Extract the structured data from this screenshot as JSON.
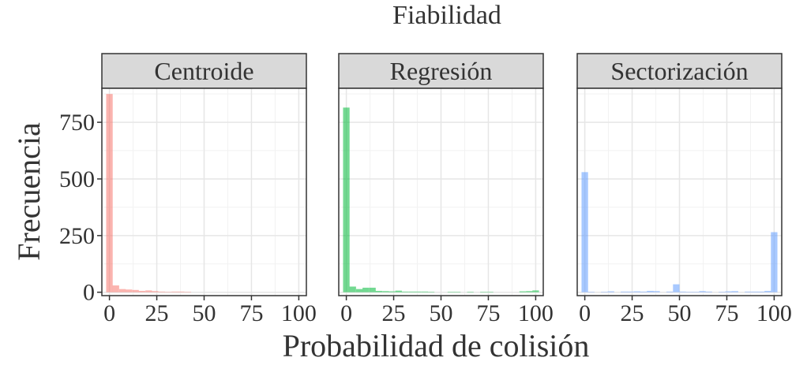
{
  "chart_data": {
    "type": "bar",
    "title": "Fiabilidad",
    "xlabel": "Probabilidad de colisión",
    "ylabel": "Frecuencia",
    "xlim": [
      -4,
      104
    ],
    "ylim": [
      -15,
      900
    ],
    "x_ticks": [
      0,
      25,
      50,
      75,
      100
    ],
    "x_tick_labels": [
      "0",
      "25",
      "50",
      "75",
      "100"
    ],
    "y_ticks": [
      0,
      250,
      500,
      750
    ],
    "y_tick_labels": [
      "0",
      "250",
      "500",
      "750"
    ],
    "bin_width": 3.448,
    "grid": true,
    "legend": "none",
    "panels": [
      {
        "name": "Centroide",
        "color": "#F8766D",
        "bins": [
          {
            "x": 0.0,
            "count": 875
          },
          {
            "x": 3.4,
            "count": 30
          },
          {
            "x": 6.9,
            "count": 14
          },
          {
            "x": 10.3,
            "count": 12
          },
          {
            "x": 13.8,
            "count": 10
          },
          {
            "x": 17.2,
            "count": 6
          },
          {
            "x": 20.7,
            "count": 8
          },
          {
            "x": 24.1,
            "count": 5
          },
          {
            "x": 27.6,
            "count": 3
          },
          {
            "x": 31.0,
            "count": 2
          },
          {
            "x": 34.5,
            "count": 3
          },
          {
            "x": 37.9,
            "count": 3
          },
          {
            "x": 41.4,
            "count": 2
          }
        ]
      },
      {
        "name": "Regresión",
        "color": "#00BA38",
        "bins": [
          {
            "x": 0.0,
            "count": 815
          },
          {
            "x": 3.4,
            "count": 25
          },
          {
            "x": 6.9,
            "count": 14
          },
          {
            "x": 10.3,
            "count": 20
          },
          {
            "x": 13.8,
            "count": 20
          },
          {
            "x": 17.2,
            "count": 6
          },
          {
            "x": 20.7,
            "count": 5
          },
          {
            "x": 24.1,
            "count": 4
          },
          {
            "x": 27.6,
            "count": 7
          },
          {
            "x": 31.0,
            "count": 3
          },
          {
            "x": 34.5,
            "count": 3
          },
          {
            "x": 37.9,
            "count": 3
          },
          {
            "x": 41.4,
            "count": 3
          },
          {
            "x": 44.8,
            "count": 2
          },
          {
            "x": 55.2,
            "count": 2
          },
          {
            "x": 58.6,
            "count": 2
          },
          {
            "x": 65.5,
            "count": 2
          },
          {
            "x": 72.4,
            "count": 2
          },
          {
            "x": 75.9,
            "count": 2
          },
          {
            "x": 93.1,
            "count": 4
          },
          {
            "x": 96.6,
            "count": 5
          },
          {
            "x": 100.0,
            "count": 8
          }
        ]
      },
      {
        "name": "Sectorización",
        "color": "#619CFF",
        "bins": [
          {
            "x": 0.0,
            "count": 530
          },
          {
            "x": 3.4,
            "count": 2
          },
          {
            "x": 10.3,
            "count": 2
          },
          {
            "x": 13.8,
            "count": 4
          },
          {
            "x": 20.7,
            "count": 3
          },
          {
            "x": 24.1,
            "count": 3
          },
          {
            "x": 27.6,
            "count": 4
          },
          {
            "x": 31.0,
            "count": 3
          },
          {
            "x": 34.5,
            "count": 6
          },
          {
            "x": 37.9,
            "count": 5
          },
          {
            "x": 44.8,
            "count": 3
          },
          {
            "x": 48.3,
            "count": 35
          },
          {
            "x": 51.7,
            "count": 3
          },
          {
            "x": 55.2,
            "count": 2
          },
          {
            "x": 58.6,
            "count": 2
          },
          {
            "x": 62.1,
            "count": 5
          },
          {
            "x": 65.5,
            "count": 3
          },
          {
            "x": 72.4,
            "count": 2
          },
          {
            "x": 75.9,
            "count": 4
          },
          {
            "x": 79.3,
            "count": 5
          },
          {
            "x": 86.2,
            "count": 3
          },
          {
            "x": 89.7,
            "count": 3
          },
          {
            "x": 93.1,
            "count": 3
          },
          {
            "x": 96.6,
            "count": 6
          },
          {
            "x": 100.0,
            "count": 265
          }
        ]
      }
    ]
  }
}
